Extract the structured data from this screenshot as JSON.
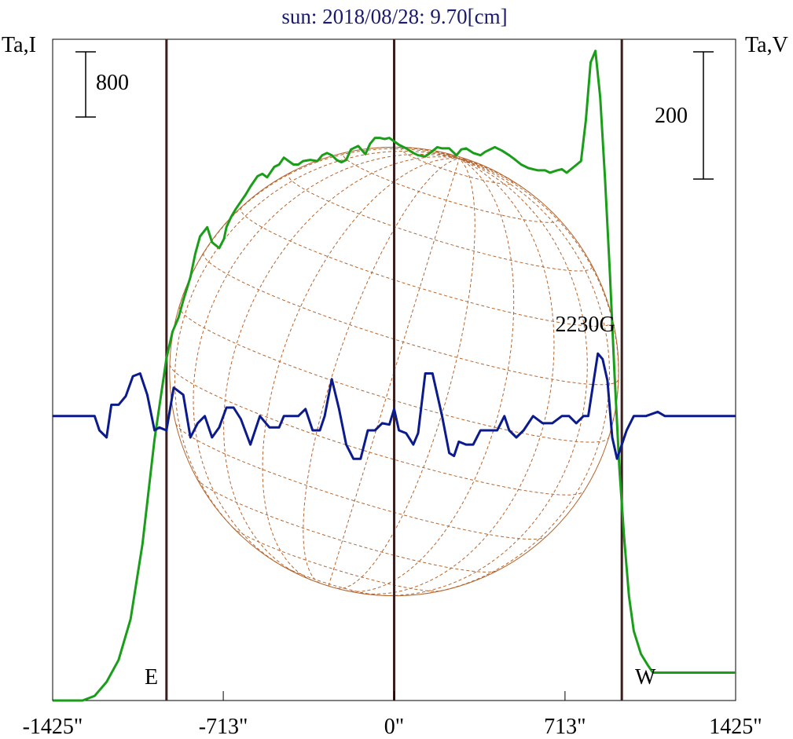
{
  "chart_data": {
    "type": "line",
    "title": "sun: 2018/08/28: 9.70[cm]",
    "ylabel_left": "Ta,I",
    "ylabel_right": "Ta,V",
    "x_ticks": [
      "-1425\"",
      "-713\"",
      "0\"",
      "713\"",
      "1425\""
    ],
    "x_tick_values": [
      -1425,
      -713,
      0,
      713,
      1425
    ],
    "xlim": [
      -1425,
      1425
    ],
    "limb_lines": [
      -950,
      0,
      950
    ],
    "limb_labels": {
      "east": "E",
      "west": "W"
    },
    "solar_radius_arcsec": 950,
    "scale_bar_I": {
      "label": "800",
      "value": 800
    },
    "scale_bar_V": {
      "label": "200",
      "value": 200
    },
    "annotation": {
      "text": "2230G",
      "x": 830
    },
    "colors": {
      "stokes_I": "#1a9e1a",
      "stokes_V": "#0b1a8c",
      "limb": "#3a1f1f",
      "disk": "#b5652e",
      "title": "#1a1a6e"
    },
    "series": [
      {
        "name": "I",
        "y_units": "Ta,I",
        "x": [
          -1425,
          -1300,
          -1250,
          -1200,
          -1150,
          -1100,
          -1050,
          -1000,
          -950,
          -925,
          -900,
          -880,
          -850,
          -830,
          -810,
          -780,
          -760,
          -730,
          -710,
          -700,
          -680,
          -660,
          -640,
          -620,
          -600,
          -570,
          -550,
          -530,
          -500,
          -480,
          -460,
          -440,
          -420,
          -400,
          -380,
          -350,
          -320,
          -300,
          -280,
          -260,
          -240,
          -220,
          -200,
          -180,
          -150,
          -120,
          -100,
          -80,
          -60,
          -40,
          -20,
          0,
          20,
          50,
          80,
          100,
          130,
          150,
          180,
          200,
          230,
          260,
          280,
          300,
          330,
          360,
          380,
          420,
          450,
          480,
          500,
          530,
          560,
          600,
          630,
          650,
          680,
          700,
          720,
          750,
          780,
          800,
          820,
          840,
          860,
          880,
          900,
          920,
          940,
          960,
          980,
          1000,
          1030,
          1060,
          1080,
          1100,
          1425
        ],
        "y": [
          0,
          0,
          40,
          160,
          350,
          700,
          1350,
          2250,
          2950,
          3180,
          3300,
          3450,
          3650,
          3850,
          4000,
          4080,
          3950,
          3900,
          3980,
          4080,
          4170,
          4240,
          4300,
          4360,
          4430,
          4520,
          4540,
          4510,
          4600,
          4620,
          4680,
          4650,
          4620,
          4620,
          4650,
          4660,
          4650,
          4700,
          4720,
          4700,
          4660,
          4640,
          4660,
          4750,
          4780,
          4710,
          4800,
          4850,
          4850,
          4840,
          4850,
          4820,
          4790,
          4760,
          4720,
          4700,
          4690,
          4720,
          4770,
          4760,
          4760,
          4700,
          4750,
          4760,
          4720,
          4700,
          4730,
          4770,
          4740,
          4700,
          4670,
          4620,
          4590,
          4570,
          4570,
          4550,
          4570,
          4580,
          4550,
          4600,
          4650,
          5000,
          5500,
          5600,
          5200,
          4500,
          3700,
          2800,
          2000,
          1400,
          900,
          600,
          400,
          300,
          240,
          240,
          240
        ]
      },
      {
        "name": "V",
        "y_units": "Ta,V",
        "x": [
          -1425,
          -1250,
          -1230,
          -1200,
          -1180,
          -1150,
          -1120,
          -1090,
          -1060,
          -1030,
          -1000,
          -980,
          -950,
          -920,
          -880,
          -850,
          -820,
          -790,
          -760,
          -730,
          -700,
          -670,
          -640,
          -600,
          -560,
          -520,
          -480,
          -460,
          -430,
          -400,
          -370,
          -340,
          -310,
          -290,
          -260,
          -230,
          -200,
          -170,
          -140,
          -110,
          -80,
          -50,
          -20,
          0,
          20,
          50,
          80,
          100,
          130,
          160,
          200,
          230,
          250,
          270,
          300,
          330,
          360,
          400,
          430,
          460,
          480,
          510,
          540,
          580,
          620,
          660,
          700,
          730,
          760,
          790,
          810,
          830,
          850,
          870,
          890,
          910,
          930,
          950,
          970,
          1000,
          1050,
          1100,
          1130,
          1425
        ],
        "y": [
          0,
          0,
          -10,
          -15,
          8,
          8,
          14,
          28,
          30,
          15,
          -10,
          -8,
          -10,
          20,
          15,
          -15,
          -5,
          0,
          -15,
          -8,
          6,
          6,
          -2,
          -20,
          0,
          -8,
          -8,
          0,
          0,
          0,
          5,
          -10,
          -10,
          0,
          26,
          5,
          -20,
          -30,
          -30,
          -10,
          -10,
          -5,
          -6,
          5,
          -10,
          -12,
          -20,
          -12,
          30,
          30,
          0,
          -26,
          -28,
          -18,
          -20,
          -20,
          -10,
          -10,
          -10,
          0,
          -10,
          -15,
          -10,
          0,
          -5,
          -5,
          0,
          0,
          -5,
          0,
          0,
          22,
          44,
          40,
          25,
          -15,
          -30,
          -20,
          -10,
          0,
          0,
          3,
          0,
          0
        ]
      }
    ],
    "ylim_I": [
      0,
      5700
    ],
    "ylim_V": [
      -200,
      265
    ]
  }
}
